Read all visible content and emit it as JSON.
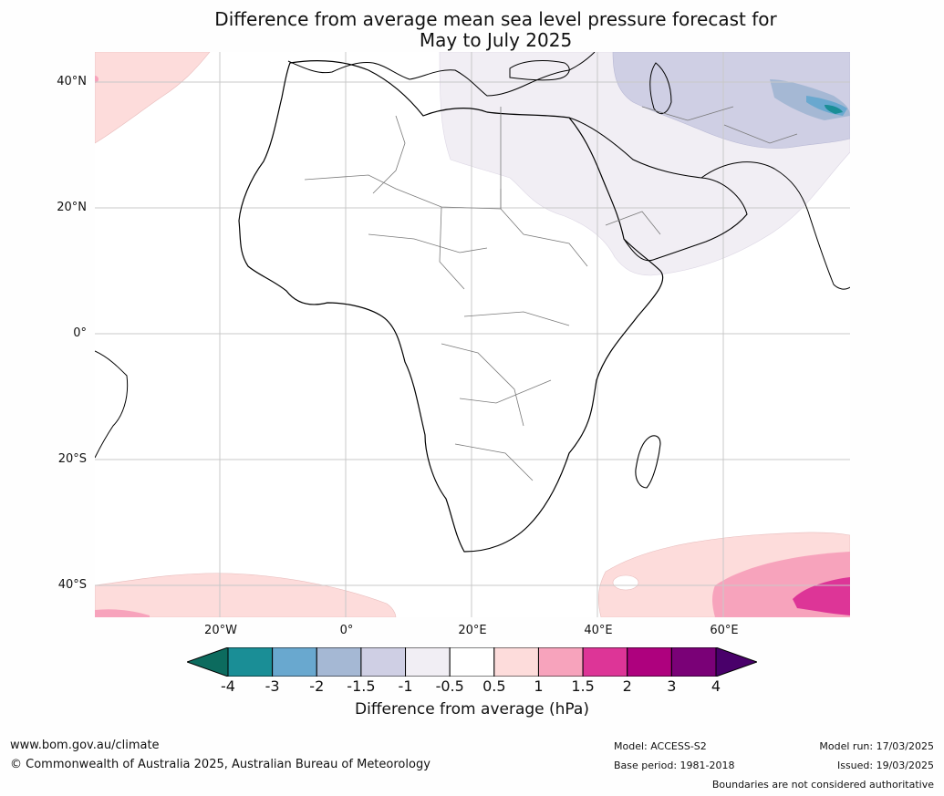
{
  "title": {
    "line1": "Difference from average mean sea level pressure forecast for",
    "line2": "May to July 2025"
  },
  "lat_labels": [
    "40°N",
    "20°N",
    "0°",
    "20°S",
    "40°S"
  ],
  "lon_labels": [
    "20°W",
    "0°",
    "20°E",
    "40°E",
    "60°E"
  ],
  "colorbar": {
    "ticks": [
      "-4",
      "-3",
      "-2",
      "-1.5",
      "-1",
      "-0.5",
      "0.5",
      "1",
      "1.5",
      "2",
      "3",
      "4"
    ],
    "colors": [
      "#1a8e96",
      "#69a8cf",
      "#a5b8d4",
      "#cfcfe4",
      "#f1eef4",
      "#ffffff",
      "#fddcdb",
      "#f7a3bc",
      "#dd3597",
      "#ae017e",
      "#7a0177"
    ],
    "extend_low_color": "#0c6b5e",
    "extend_high_color": "#49006a",
    "label": "Difference from average (hPa)"
  },
  "footer": {
    "website": "www.bom.gov.au/climate",
    "copyright": "© Commonwealth of Australia 2025, Australian Bureau of Meteorology",
    "model": "Model: ACCESS-S2",
    "base_period": "Base period: 1981-2018",
    "model_run": "Model run: 17/03/2025",
    "issued": "Issued: 19/03/2025",
    "disclaimer": "Boundaries are not considered authoritative"
  }
}
